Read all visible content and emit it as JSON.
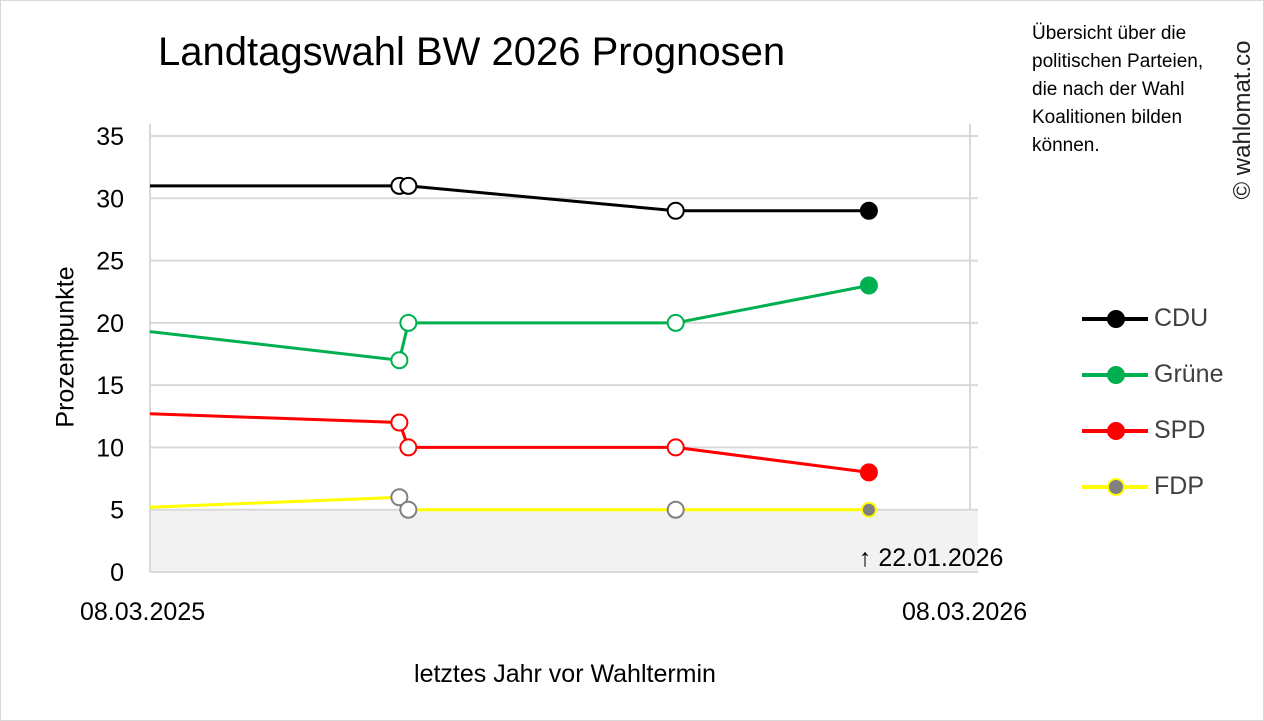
{
  "chart_data": {
    "type": "line",
    "title": "Landtagswahl BW 2026 Prognosen",
    "xlabel": "letztes Jahr vor Wahltermin",
    "ylabel": "Prozentpunkte",
    "x_range": [
      "08.03.2025",
      "08.03.2026"
    ],
    "ylim": [
      0,
      35
    ],
    "yticks": [
      0,
      5,
      10,
      15,
      20,
      25,
      30,
      35
    ],
    "grid": true,
    "legend_position": "right",
    "series": [
      {
        "name": "CDU",
        "color": "#000000",
        "marker_border": "#000000",
        "x": [
          "08.03.2025",
          "27.06.2025",
          "01.07.2025",
          "28.10.2025",
          "22.01.2026"
        ],
        "values": [
          31,
          31,
          31,
          29,
          29
        ]
      },
      {
        "name": "Grüne",
        "color": "#00b050",
        "marker_border": "#00b050",
        "x": [
          "08.03.2025",
          "27.06.2025",
          "01.07.2025",
          "28.10.2025",
          "22.01.2026"
        ],
        "values": [
          19.3,
          17,
          20,
          20,
          23
        ]
      },
      {
        "name": "SPD",
        "color": "#ff0000",
        "marker_border": "#ff0000",
        "x": [
          "08.03.2025",
          "27.06.2025",
          "01.07.2025",
          "28.10.2025",
          "22.01.2026"
        ],
        "values": [
          12.7,
          12,
          10,
          10,
          8
        ]
      },
      {
        "name": "FDP",
        "color": "#ffff00",
        "marker_border": "#808080",
        "final_fill": "#808080",
        "x": [
          "08.03.2025",
          "27.06.2025",
          "01.07.2025",
          "28.10.2025",
          "22.01.2026"
        ],
        "values": [
          5.2,
          6,
          5,
          5,
          5
        ]
      }
    ],
    "threshold": {
      "value": 5,
      "shade": "#f2f2f2"
    },
    "annotation": {
      "date": "22.01.2026",
      "text": "↑ 22.01.2026"
    }
  },
  "note": "Übersicht über die\npolitischen Parteien,\ndie nach der Wahl\nKoalitionen bilden\nkönnen.",
  "watermark": "© wahlomat.co",
  "x_tick_left": "08.03.2025",
  "x_tick_right": "08.03.2026"
}
